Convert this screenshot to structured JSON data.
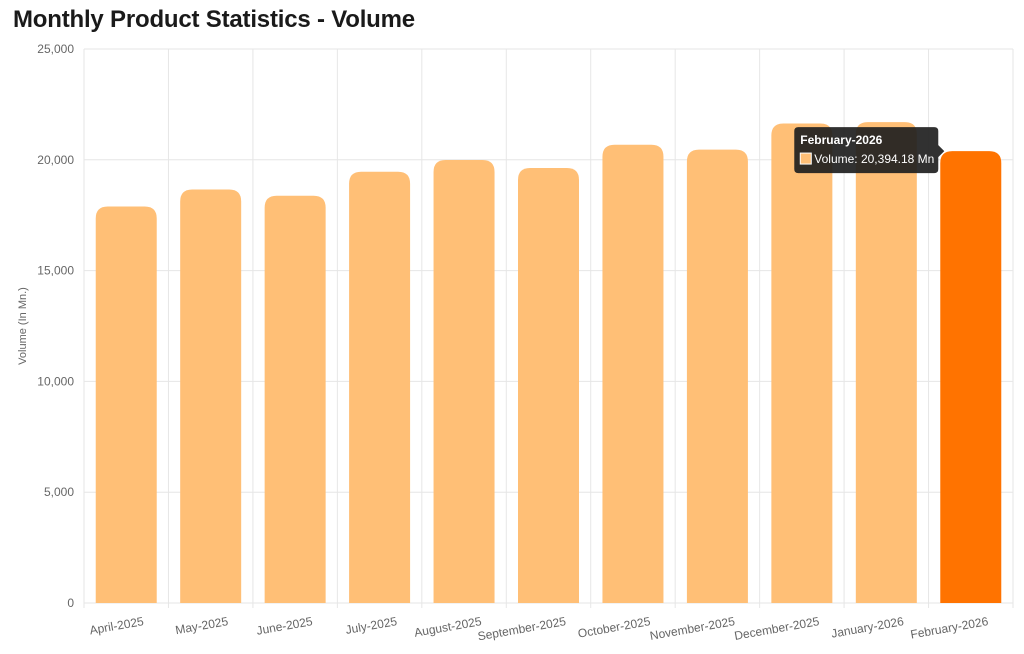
{
  "chart_data": {
    "type": "bar",
    "title": "Monthly Product Statistics - Volume",
    "xlabel": "",
    "ylabel": "Volume (In Mn.)",
    "ylim": [
      0,
      25000
    ],
    "yticks": [
      0,
      5000,
      10000,
      15000,
      20000,
      25000
    ],
    "ytick_labels": [
      "0",
      "5,000",
      "10,000",
      "15,000",
      "20,000",
      "25,000"
    ],
    "grid": true,
    "categories": [
      "April-2025",
      "May-2025",
      "June-2025",
      "July-2025",
      "August-2025",
      "September-2025",
      "October-2025",
      "November-2025",
      "December-2025",
      "January-2026",
      "February-2026"
    ],
    "series": [
      {
        "name": "Volume",
        "values": [
          17890,
          18660,
          18380,
          19460,
          19990,
          19630,
          20680,
          20460,
          21640,
          21700,
          20394.18
        ]
      }
    ],
    "colors": {
      "bar": "#ffbf76",
      "highlight": "#ff7300",
      "grid": "#e6e6e6",
      "tooltip_bg": "#1f1f1f"
    },
    "highlight_index": 10,
    "tooltip": {
      "title": "February-2026",
      "text": "Volume: 20,394.18 Mn"
    }
  }
}
